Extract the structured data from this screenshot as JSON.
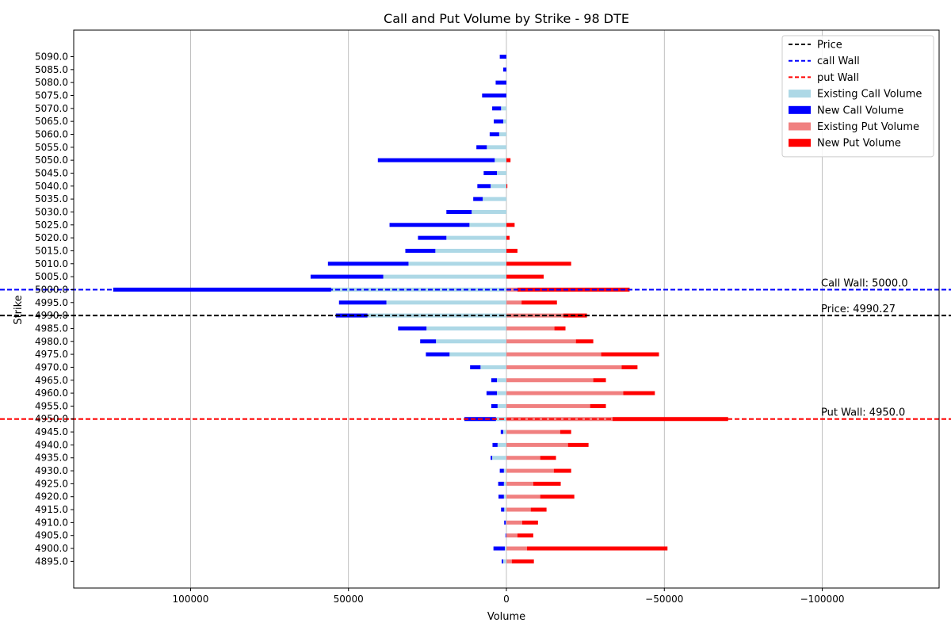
{
  "chart_data": {
    "type": "bar",
    "orientation": "horizontal",
    "title": "Call and Put Volume by Strike - 98 DTE",
    "xlabel": "Volume",
    "ylabel": "Strike",
    "xlim": [
      137000,
      -137000
    ],
    "x_axis_inverted": true,
    "xticks": [
      100000,
      50000,
      0,
      -50000,
      -100000
    ],
    "xtick_labels": [
      "100000",
      "50000",
      "0",
      "−50000",
      "−100000"
    ],
    "grid": "x",
    "legend": "top-right",
    "strikes": [
      "5090.0",
      "5085.0",
      "5080.0",
      "5075.0",
      "5070.0",
      "5065.0",
      "5060.0",
      "5055.0",
      "5050.0",
      "5045.0",
      "5040.0",
      "5035.0",
      "5030.0",
      "5025.0",
      "5020.0",
      "5015.0",
      "5010.0",
      "5005.0",
      "5000.0",
      "4995.0",
      "4990.0",
      "4985.0",
      "4980.0",
      "4975.0",
      "4970.0",
      "4965.0",
      "4960.0",
      "4955.0",
      "4950.0",
      "4945.0",
      "4940.0",
      "4935.0",
      "4930.0",
      "4925.0",
      "4920.0",
      "4915.0",
      "4910.0",
      "4905.0",
      "4900.0",
      "4895.0"
    ],
    "series": [
      {
        "name": "Existing Call Volume",
        "color": "#add8e6",
        "values": [
          0,
          0,
          0,
          0,
          1700,
          1000,
          2300,
          6200,
          3700,
          3000,
          5000,
          7500,
          11000,
          11700,
          19000,
          22500,
          31000,
          39000,
          55500,
          38000,
          44000,
          25300,
          22300,
          18000,
          8200,
          3000,
          3000,
          2800,
          3300,
          1000,
          2800,
          4500,
          800,
          800,
          800,
          700,
          200,
          100,
          500,
          1000
        ]
      },
      {
        "name": "New Call Volume",
        "color": "#0000ff",
        "values": [
          2100,
          1000,
          3400,
          7700,
          2800,
          3000,
          3000,
          3300,
          37000,
          4200,
          4200,
          3000,
          8000,
          25300,
          9000,
          9500,
          25500,
          23000,
          69000,
          15000,
          10000,
          9000,
          5000,
          7500,
          3300,
          1800,
          3300,
          2000,
          10000,
          800,
          1600,
          500,
          1300,
          1800,
          1700,
          1000,
          500,
          200,
          3600,
          500
        ]
      },
      {
        "name": "Existing Put Volume",
        "color": "#f08080",
        "values": [
          0,
          0,
          0,
          0,
          0,
          0,
          0,
          0,
          0,
          0,
          0,
          0,
          0,
          0,
          0,
          0,
          0,
          0,
          3500,
          4800,
          18000,
          15200,
          22000,
          30000,
          36500,
          27500,
          37000,
          26500,
          33600,
          17000,
          19500,
          10700,
          15000,
          8500,
          10700,
          7700,
          5000,
          3500,
          6500,
          1700
        ]
      },
      {
        "name": "New Put Volume",
        "color": "#ff0000",
        "values": [
          0,
          0,
          0,
          0,
          0,
          0,
          0,
          0,
          1300,
          0,
          300,
          0,
          0,
          2600,
          1000,
          3500,
          20500,
          11800,
          35500,
          11200,
          7500,
          3500,
          5500,
          18300,
          5000,
          4000,
          10000,
          5000,
          36600,
          3500,
          6500,
          5000,
          5500,
          8700,
          10800,
          5000,
          5000,
          5000,
          44500,
          7000
        ]
      }
    ],
    "reference_lines": [
      {
        "name": "Price",
        "strike": 4990.0,
        "value_label": "4990.27",
        "label": "Price: 4990.27",
        "color": "#000000"
      },
      {
        "name": "call Wall",
        "strike": 5000.0,
        "label": "Call Wall: 5000.0",
        "color": "#0000ff"
      },
      {
        "name": "put Wall",
        "strike": 4950.0,
        "label": "Put Wall: 4950.0",
        "color": "#ff0000"
      }
    ],
    "legend_entries": [
      {
        "label": "Price",
        "kind": "line",
        "color": "#000000"
      },
      {
        "label": "call Wall",
        "kind": "line",
        "color": "#0000ff"
      },
      {
        "label": "put Wall",
        "kind": "line",
        "color": "#ff0000"
      },
      {
        "label": "Existing Call Volume",
        "kind": "patch",
        "color": "#add8e6"
      },
      {
        "label": "New Call Volume",
        "kind": "patch",
        "color": "#0000ff"
      },
      {
        "label": "Existing Put Volume",
        "kind": "patch",
        "color": "#f08080"
      },
      {
        "label": "New Put Volume",
        "kind": "patch",
        "color": "#ff0000"
      }
    ]
  }
}
